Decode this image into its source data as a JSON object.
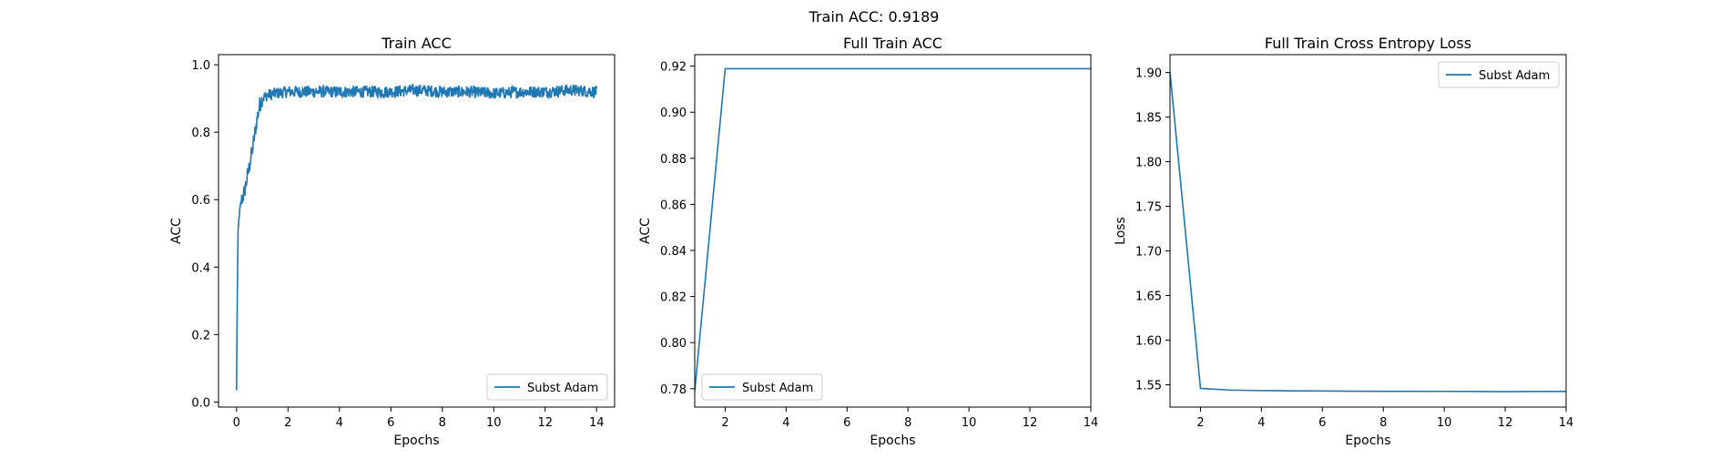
{
  "figure": {
    "suptitle": "Train ACC: 0.9189"
  },
  "colors": {
    "series": "#1f77b4",
    "axes": "#000000",
    "background": "#ffffff",
    "legend_border": "#cccccc"
  },
  "chart_data": [
    {
      "type": "line",
      "title": "Train ACC",
      "xlabel": "Epochs",
      "ylabel": "ACC",
      "xlim": [
        -0.7,
        14.7
      ],
      "ylim": [
        -0.015,
        1.03
      ],
      "xticks": [
        0,
        2,
        4,
        6,
        8,
        10,
        12,
        14
      ],
      "xtick_labels": [
        "0",
        "2",
        "4",
        "6",
        "8",
        "10",
        "12",
        "14"
      ],
      "yticks": [
        0.0,
        0.2,
        0.4,
        0.6,
        0.8,
        1.0
      ],
      "ytick_labels": [
        "0.0",
        "0.2",
        "0.4",
        "0.6",
        "0.8",
        "1.0"
      ],
      "legend_position": "lower-right",
      "grid": false,
      "series": [
        {
          "name": "Subst Adam",
          "noisy": true,
          "x": [
            0.0,
            0.03,
            0.06,
            0.1,
            0.15,
            0.2,
            0.25,
            0.3,
            0.4,
            0.5,
            0.6,
            0.7,
            0.8,
            0.9,
            1.0,
            1.2,
            1.5,
            2.0,
            3.0,
            4.0,
            5.0,
            6.0,
            7.0,
            8.0,
            9.0,
            10.0,
            11.0,
            12.0,
            13.0,
            14.0
          ],
          "y": [
            0.035,
            0.32,
            0.5,
            0.55,
            0.58,
            0.6,
            0.61,
            0.62,
            0.66,
            0.7,
            0.74,
            0.79,
            0.84,
            0.88,
            0.9,
            0.91,
            0.915,
            0.92,
            0.92,
            0.92,
            0.92,
            0.92,
            0.925,
            0.92,
            0.92,
            0.915,
            0.92,
            0.92,
            0.925,
            0.92
          ]
        }
      ]
    },
    {
      "type": "line",
      "title": "Full Train ACC",
      "xlabel": "Epochs",
      "ylabel": "ACC",
      "xlim": [
        1,
        14
      ],
      "ylim": [
        0.772,
        0.925
      ],
      "xticks": [
        2,
        4,
        6,
        8,
        10,
        12,
        14
      ],
      "xtick_labels": [
        "2",
        "4",
        "6",
        "8",
        "10",
        "12",
        "14"
      ],
      "yticks": [
        0.78,
        0.8,
        0.82,
        0.84,
        0.86,
        0.88,
        0.9,
        0.92
      ],
      "ytick_labels": [
        "0.78",
        "0.80",
        "0.82",
        "0.84",
        "0.86",
        "0.88",
        "0.90",
        "0.92"
      ],
      "legend_position": "lower-left",
      "grid": false,
      "series": [
        {
          "name": "Subst Adam",
          "x": [
            1,
            2,
            3,
            4,
            5,
            6,
            7,
            8,
            9,
            10,
            11,
            12,
            13,
            14
          ],
          "y": [
            0.779,
            0.9189,
            0.9189,
            0.9189,
            0.9189,
            0.9189,
            0.9189,
            0.9189,
            0.9189,
            0.9189,
            0.9189,
            0.9189,
            0.9189,
            0.9189
          ]
        }
      ]
    },
    {
      "type": "line",
      "title": "Full Train Cross Entropy Loss",
      "xlabel": "Epochs",
      "ylabel": "Loss",
      "xlim": [
        1,
        14
      ],
      "ylim": [
        1.525,
        1.92
      ],
      "xticks": [
        2,
        4,
        6,
        8,
        10,
        12,
        14
      ],
      "xtick_labels": [
        "2",
        "4",
        "6",
        "8",
        "10",
        "12",
        "14"
      ],
      "yticks": [
        1.55,
        1.6,
        1.65,
        1.7,
        1.75,
        1.8,
        1.85,
        1.9
      ],
      "ytick_labels": [
        "1.55",
        "1.60",
        "1.65",
        "1.70",
        "1.75",
        "1.80",
        "1.85",
        "1.90"
      ],
      "legend_position": "upper-right",
      "grid": false,
      "series": [
        {
          "name": "Subst Adam",
          "x": [
            1,
            2,
            3,
            4,
            5,
            6,
            7,
            8,
            9,
            10,
            11,
            12,
            13,
            14
          ],
          "y": [
            1.9,
            1.546,
            1.544,
            1.5435,
            1.5432,
            1.543,
            1.5428,
            1.5427,
            1.5427,
            1.5426,
            1.5425,
            1.5423,
            1.5425,
            1.5425
          ]
        }
      ]
    }
  ]
}
